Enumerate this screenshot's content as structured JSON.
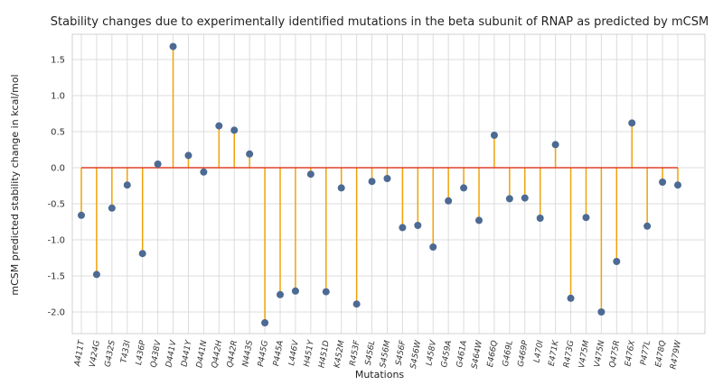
{
  "chart_data": {
    "type": "stem",
    "title": "Stability changes due to experimentally identified mutations in the beta subunit of RNAP as predicted by mCSM",
    "xlabel": "Mutations",
    "ylabel": "mCSM predicted stability change in kcal/mol",
    "ylim": [
      -2.3,
      1.85
    ],
    "yticks": [
      -2.0,
      -1.5,
      -1.0,
      -0.5,
      0.0,
      0.5,
      1.0,
      1.5
    ],
    "ytick_labels": [
      "-2.0",
      "-1.5",
      "-1.0",
      "-0.5",
      "0.0",
      "0.5",
      "1.0",
      "1.5"
    ],
    "grid": true,
    "baseline": 0.0,
    "colors": {
      "stem": "#f0a30a",
      "marker": "#4c6a93",
      "baseline": "#e0412a"
    },
    "categories": [
      "A411T",
      "V424G",
      "G432S",
      "T433I",
      "L436P",
      "Q438V",
      "D441V",
      "D441Y",
      "D441N",
      "Q442H",
      "Q442R",
      "N443S",
      "P445G",
      "P445A",
      "L446V",
      "H451Y",
      "H451D",
      "K452M",
      "R453F",
      "S456L",
      "S456M",
      "S456F",
      "S456W",
      "L458V",
      "G459A",
      "G461A",
      "S464W",
      "E466Q",
      "G469L",
      "G469P",
      "L470I",
      "E471K",
      "R473G",
      "V475M",
      "V475N",
      "Q475R",
      "E476X",
      "P477L",
      "E478Q",
      "R479W"
    ],
    "values": [
      -0.66,
      -1.48,
      -0.56,
      -0.24,
      -1.19,
      0.05,
      1.68,
      0.17,
      -0.06,
      0.58,
      0.52,
      0.19,
      -2.15,
      -1.76,
      -1.71,
      -0.09,
      -1.72,
      -0.28,
      -1.89,
      -0.19,
      -0.15,
      -0.83,
      -0.8,
      -1.1,
      -0.46,
      -0.28,
      -0.73,
      0.45,
      -0.43,
      -0.42,
      -0.7,
      0.32,
      -1.81,
      -0.69,
      -2.0,
      -1.3,
      0.62,
      -0.81,
      -0.2,
      -0.24
    ]
  }
}
